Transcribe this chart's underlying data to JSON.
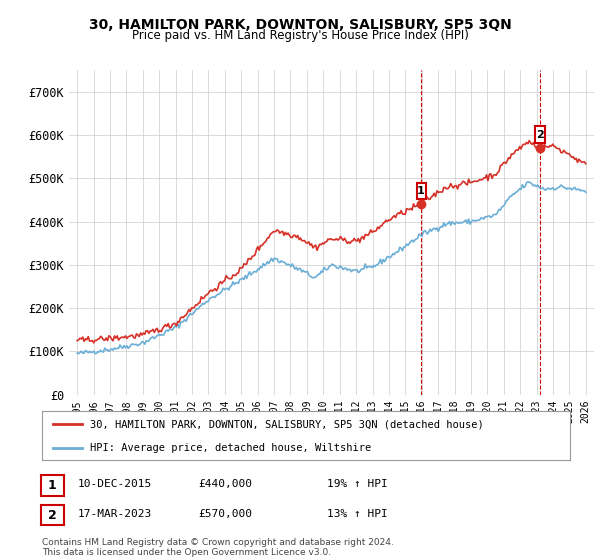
{
  "title": "30, HAMILTON PARK, DOWNTON, SALISBURY, SP5 3QN",
  "subtitle": "Price paid vs. HM Land Registry's House Price Index (HPI)",
  "legend_line1": "30, HAMILTON PARK, DOWNTON, SALISBURY, SP5 3QN (detached house)",
  "legend_line2": "HPI: Average price, detached house, Wiltshire",
  "sale1_date": "10-DEC-2015",
  "sale1_price": "£440,000",
  "sale1_hpi": "19% ↑ HPI",
  "sale2_date": "17-MAR-2023",
  "sale2_price": "£570,000",
  "sale2_hpi": "13% ↑ HPI",
  "footer": "Contains HM Land Registry data © Crown copyright and database right 2024.\nThis data is licensed under the Open Government Licence v3.0.",
  "hpi_color": "#6baed6",
  "price_color": "#d73027",
  "vline_color": "#cc0000",
  "background_color": "#ffffff",
  "ylim": [
    0,
    750000
  ],
  "yticks": [
    0,
    100000,
    200000,
    300000,
    400000,
    500000,
    600000,
    700000
  ]
}
